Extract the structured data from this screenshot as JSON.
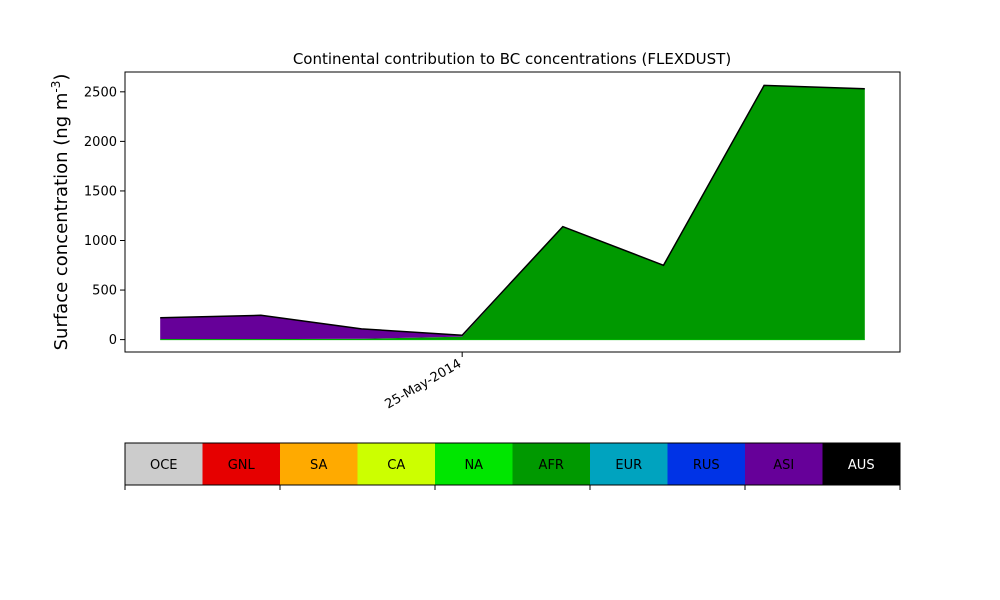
{
  "chart_data": [
    {
      "type": "area",
      "stacked": true,
      "title": "Continental contribution to BC concentrations (FLEXDUST)",
      "ylabel": "Surface concentration (ng m",
      "ylabel_exponent": "-3",
      "ylabel_close": ")",
      "xlabel": "",
      "ylim": [
        -125,
        2700
      ],
      "yticks": [
        0,
        500,
        1000,
        1500,
        2000,
        2500
      ],
      "xlim": [
        -0.35,
        7.35
      ],
      "xticks": [
        {
          "x": 3,
          "label": "25-May-2014"
        }
      ],
      "grid": false,
      "x": [
        0,
        1,
        2,
        3,
        4,
        5,
        6,
        7
      ],
      "series": [
        {
          "name": "OCE",
          "color": "#cccccc",
          "values": [
            0,
            0,
            0,
            0,
            0,
            0,
            0,
            0
          ]
        },
        {
          "name": "GNL",
          "color": "#e60000",
          "values": [
            0,
            0,
            0,
            0,
            0,
            0,
            0,
            0
          ]
        },
        {
          "name": "SA",
          "color": "#ffaa00",
          "values": [
            0,
            0,
            0,
            0,
            0,
            0,
            0,
            0
          ]
        },
        {
          "name": "CA",
          "color": "#ccff00",
          "values": [
            0,
            0,
            0,
            0,
            0,
            0,
            0,
            0
          ]
        },
        {
          "name": "NA",
          "color": "#00e600",
          "values": [
            0,
            0,
            0,
            0,
            0,
            0,
            0,
            0
          ]
        },
        {
          "name": "AFR",
          "color": "#009900",
          "values": [
            5,
            5,
            8,
            30,
            1140,
            750,
            2565,
            2530
          ]
        },
        {
          "name": "EUR",
          "color": "#00a3bf",
          "values": [
            0,
            0,
            0,
            0,
            0,
            0,
            0,
            0
          ]
        },
        {
          "name": "RUS",
          "color": "#0033e6",
          "values": [
            0,
            0,
            0,
            0,
            0,
            0,
            0,
            0
          ]
        },
        {
          "name": "ASI",
          "color": "#660099",
          "values": [
            215,
            240,
            100,
            15,
            0,
            0,
            0,
            0
          ]
        },
        {
          "name": "AUS",
          "color": "#000000",
          "values": [
            0,
            0,
            0,
            0,
            0,
            0,
            0,
            0
          ]
        }
      ],
      "line_color": "#000000"
    },
    {
      "type": "legend-bar",
      "labels": [
        "OCE",
        "GNL",
        "SA",
        "CA",
        "NA",
        "AFR",
        "EUR",
        "RUS",
        "ASI",
        "AUS"
      ],
      "colors": [
        "#cccccc",
        "#e60000",
        "#ffaa00",
        "#ccff00",
        "#00e600",
        "#009900",
        "#00a3bf",
        "#0033e6",
        "#660099",
        "#000000"
      ],
      "text_colors": [
        "#000000",
        "#000000",
        "#000000",
        "#000000",
        "#000000",
        "#000000",
        "#000000",
        "#000000",
        "#000000",
        "#ffffff"
      ]
    }
  ]
}
